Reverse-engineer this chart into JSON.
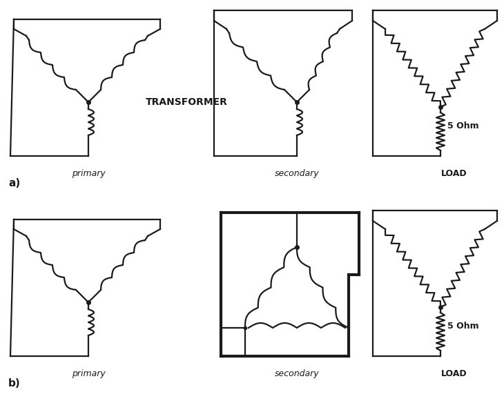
{
  "bg_color": "#ffffff",
  "line_color": "#1a1a1a",
  "lw": 1.6,
  "blw": 3.0,
  "label_a": "a)",
  "label_b": "b)",
  "label_primary": "primary",
  "label_secondary": "secondary",
  "label_load": "LOAD",
  "label_transformer": "TRANSFORMER",
  "label_5ohm": "5 Ohm"
}
